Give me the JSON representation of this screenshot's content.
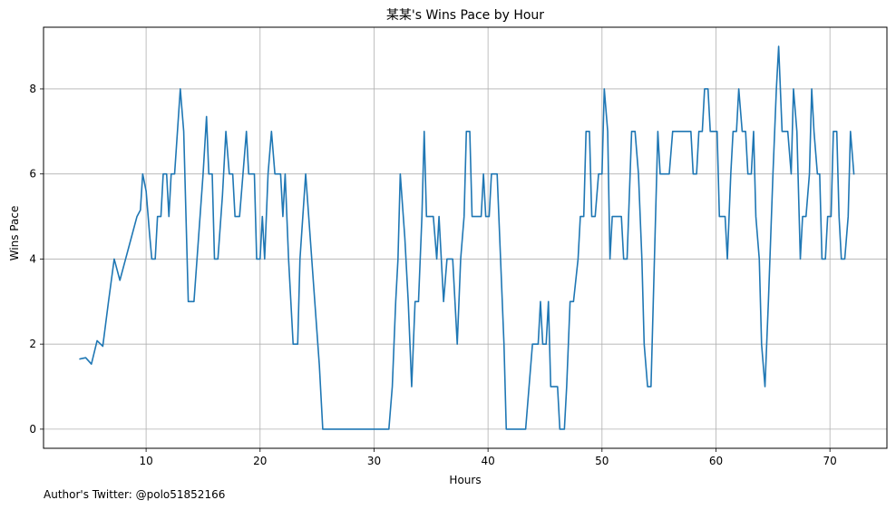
{
  "chart_data": {
    "type": "line",
    "title": "某某's Wins Pace by Hour",
    "xlabel": "Hours",
    "ylabel": "Wins Pace",
    "xlim": [
      1.0,
      75.0
    ],
    "ylim": [
      -0.45,
      9.45
    ],
    "xticks": [
      10,
      20,
      30,
      40,
      50,
      60,
      70
    ],
    "yticks": [
      0,
      2,
      4,
      6,
      8
    ],
    "grid": true,
    "line_color": "#1f77b4",
    "series": [
      {
        "points": [
          [
            4.2,
            1.65
          ],
          [
            4.7,
            1.68
          ],
          [
            5.2,
            1.53
          ],
          [
            5.7,
            2.08
          ],
          [
            6.2,
            1.95
          ],
          [
            6.7,
            3.0
          ],
          [
            7.2,
            4.0
          ],
          [
            7.7,
            3.5
          ],
          [
            8.2,
            4.0
          ],
          [
            8.7,
            4.5
          ],
          [
            9.2,
            5.0
          ],
          [
            9.5,
            5.15
          ],
          [
            9.7,
            6.0
          ],
          [
            10.0,
            5.6
          ],
          [
            10.3,
            4.6
          ],
          [
            10.5,
            4.0
          ],
          [
            10.8,
            4.0
          ],
          [
            11.0,
            5.0
          ],
          [
            11.3,
            5.0
          ],
          [
            11.5,
            6.0
          ],
          [
            11.8,
            6.0
          ],
          [
            12.0,
            5.0
          ],
          [
            12.2,
            6.0
          ],
          [
            12.5,
            6.0
          ],
          [
            13.0,
            8.0
          ],
          [
            13.3,
            7.0
          ],
          [
            13.7,
            3.0
          ],
          [
            14.2,
            3.0
          ],
          [
            14.6,
            4.5
          ],
          [
            15.0,
            6.0
          ],
          [
            15.3,
            7.35
          ],
          [
            15.5,
            6.0
          ],
          [
            15.8,
            6.0
          ],
          [
            16.0,
            4.0
          ],
          [
            16.3,
            4.0
          ],
          [
            16.7,
            5.5
          ],
          [
            17.0,
            7.0
          ],
          [
            17.3,
            6.0
          ],
          [
            17.6,
            6.0
          ],
          [
            17.8,
            5.0
          ],
          [
            18.2,
            5.0
          ],
          [
            18.5,
            6.0
          ],
          [
            18.8,
            7.0
          ],
          [
            19.0,
            6.0
          ],
          [
            19.5,
            6.0
          ],
          [
            19.7,
            4.0
          ],
          [
            20.0,
            4.0
          ],
          [
            20.2,
            5.0
          ],
          [
            20.4,
            4.0
          ],
          [
            20.7,
            6.0
          ],
          [
            21.0,
            7.0
          ],
          [
            21.3,
            6.0
          ],
          [
            21.8,
            6.0
          ],
          [
            22.0,
            5.0
          ],
          [
            22.2,
            6.0
          ],
          [
            22.5,
            4.0
          ],
          [
            22.7,
            3.0
          ],
          [
            22.9,
            2.0
          ],
          [
            23.3,
            2.0
          ],
          [
            23.5,
            4.0
          ],
          [
            24.0,
            6.0
          ],
          [
            24.4,
            4.5
          ],
          [
            24.8,
            3.0
          ],
          [
            25.2,
            1.5
          ],
          [
            25.5,
            0.0
          ],
          [
            26.5,
            0.0
          ],
          [
            28.0,
            0.0
          ],
          [
            30.0,
            0.0
          ],
          [
            31.3,
            0.0
          ],
          [
            31.6,
            1.0
          ],
          [
            31.9,
            3.0
          ],
          [
            32.1,
            4.0
          ],
          [
            32.3,
            6.0
          ],
          [
            32.7,
            4.5
          ],
          [
            33.0,
            3.0
          ],
          [
            33.3,
            1.0
          ],
          [
            33.6,
            3.0
          ],
          [
            33.9,
            3.0
          ],
          [
            34.2,
            5.0
          ],
          [
            34.4,
            7.0
          ],
          [
            34.6,
            5.0
          ],
          [
            35.2,
            5.0
          ],
          [
            35.5,
            4.0
          ],
          [
            35.7,
            5.0
          ],
          [
            35.9,
            4.0
          ],
          [
            36.1,
            3.0
          ],
          [
            36.4,
            4.0
          ],
          [
            36.9,
            4.0
          ],
          [
            37.3,
            2.0
          ],
          [
            37.6,
            4.0
          ],
          [
            37.9,
            5.0
          ],
          [
            38.1,
            7.0
          ],
          [
            38.4,
            7.0
          ],
          [
            38.6,
            5.0
          ],
          [
            39.0,
            5.0
          ],
          [
            39.4,
            5.0
          ],
          [
            39.6,
            6.0
          ],
          [
            39.8,
            5.0
          ],
          [
            40.1,
            5.0
          ],
          [
            40.3,
            6.0
          ],
          [
            40.8,
            6.0
          ],
          [
            41.1,
            4.0
          ],
          [
            41.4,
            2.0
          ],
          [
            41.6,
            0.0
          ],
          [
            42.5,
            0.0
          ],
          [
            43.3,
            0.0
          ],
          [
            43.6,
            1.0
          ],
          [
            43.9,
            2.0
          ],
          [
            44.4,
            2.0
          ],
          [
            44.6,
            3.0
          ],
          [
            44.8,
            2.0
          ],
          [
            45.1,
            2.0
          ],
          [
            45.3,
            3.0
          ],
          [
            45.5,
            1.0
          ],
          [
            46.1,
            1.0
          ],
          [
            46.3,
            0.0
          ],
          [
            46.7,
            0.0
          ],
          [
            46.9,
            1.0
          ],
          [
            47.2,
            3.0
          ],
          [
            47.5,
            3.0
          ],
          [
            47.9,
            4.0
          ],
          [
            48.1,
            5.0
          ],
          [
            48.4,
            5.0
          ],
          [
            48.6,
            7.0
          ],
          [
            48.9,
            7.0
          ],
          [
            49.1,
            5.0
          ],
          [
            49.4,
            5.0
          ],
          [
            49.7,
            6.0
          ],
          [
            50.0,
            6.0
          ],
          [
            50.2,
            8.0
          ],
          [
            50.5,
            7.0
          ],
          [
            50.7,
            4.0
          ],
          [
            50.9,
            5.0
          ],
          [
            51.7,
            5.0
          ],
          [
            51.9,
            4.0
          ],
          [
            52.2,
            4.0
          ],
          [
            52.6,
            7.0
          ],
          [
            52.9,
            7.0
          ],
          [
            53.2,
            6.0
          ],
          [
            53.5,
            4.0
          ],
          [
            53.7,
            2.0
          ],
          [
            54.0,
            1.0
          ],
          [
            54.3,
            1.0
          ],
          [
            54.5,
            3.0
          ],
          [
            54.7,
            5.0
          ],
          [
            54.9,
            7.0
          ],
          [
            55.1,
            6.0
          ],
          [
            55.9,
            6.0
          ],
          [
            56.2,
            7.0
          ],
          [
            57.0,
            7.0
          ],
          [
            57.8,
            7.0
          ],
          [
            58.0,
            6.0
          ],
          [
            58.3,
            6.0
          ],
          [
            58.5,
            7.0
          ],
          [
            58.8,
            7.0
          ],
          [
            59.0,
            8.0
          ],
          [
            59.3,
            8.0
          ],
          [
            59.5,
            7.0
          ],
          [
            60.1,
            7.0
          ],
          [
            60.3,
            5.0
          ],
          [
            60.8,
            5.0
          ],
          [
            61.0,
            4.0
          ],
          [
            61.3,
            6.0
          ],
          [
            61.5,
            7.0
          ],
          [
            61.8,
            7.0
          ],
          [
            62.0,
            8.0
          ],
          [
            62.3,
            7.0
          ],
          [
            62.6,
            7.0
          ],
          [
            62.8,
            6.0
          ],
          [
            63.1,
            6.0
          ],
          [
            63.3,
            7.0
          ],
          [
            63.5,
            5.0
          ],
          [
            63.8,
            4.0
          ],
          [
            64.0,
            2.0
          ],
          [
            64.3,
            1.0
          ],
          [
            64.6,
            3.0
          ],
          [
            65.0,
            6.0
          ],
          [
            65.3,
            8.0
          ],
          [
            65.5,
            9.0
          ],
          [
            65.8,
            7.0
          ],
          [
            66.3,
            7.0
          ],
          [
            66.6,
            6.0
          ],
          [
            66.8,
            8.0
          ],
          [
            67.1,
            7.0
          ],
          [
            67.4,
            4.0
          ],
          [
            67.6,
            5.0
          ],
          [
            67.9,
            5.0
          ],
          [
            68.2,
            6.0
          ],
          [
            68.4,
            8.0
          ],
          [
            68.6,
            7.0
          ],
          [
            68.9,
            6.0
          ],
          [
            69.1,
            6.0
          ],
          [
            69.3,
            4.0
          ],
          [
            69.6,
            4.0
          ],
          [
            69.8,
            5.0
          ],
          [
            70.1,
            5.0
          ],
          [
            70.3,
            7.0
          ],
          [
            70.6,
            7.0
          ],
          [
            70.8,
            5.0
          ],
          [
            71.0,
            4.0
          ],
          [
            71.3,
            4.0
          ],
          [
            71.6,
            5.0
          ],
          [
            71.8,
            7.0
          ],
          [
            72.1,
            6.0
          ]
        ]
      }
    ]
  },
  "footer": {
    "note": "Author's Twitter: @polo51852166"
  }
}
